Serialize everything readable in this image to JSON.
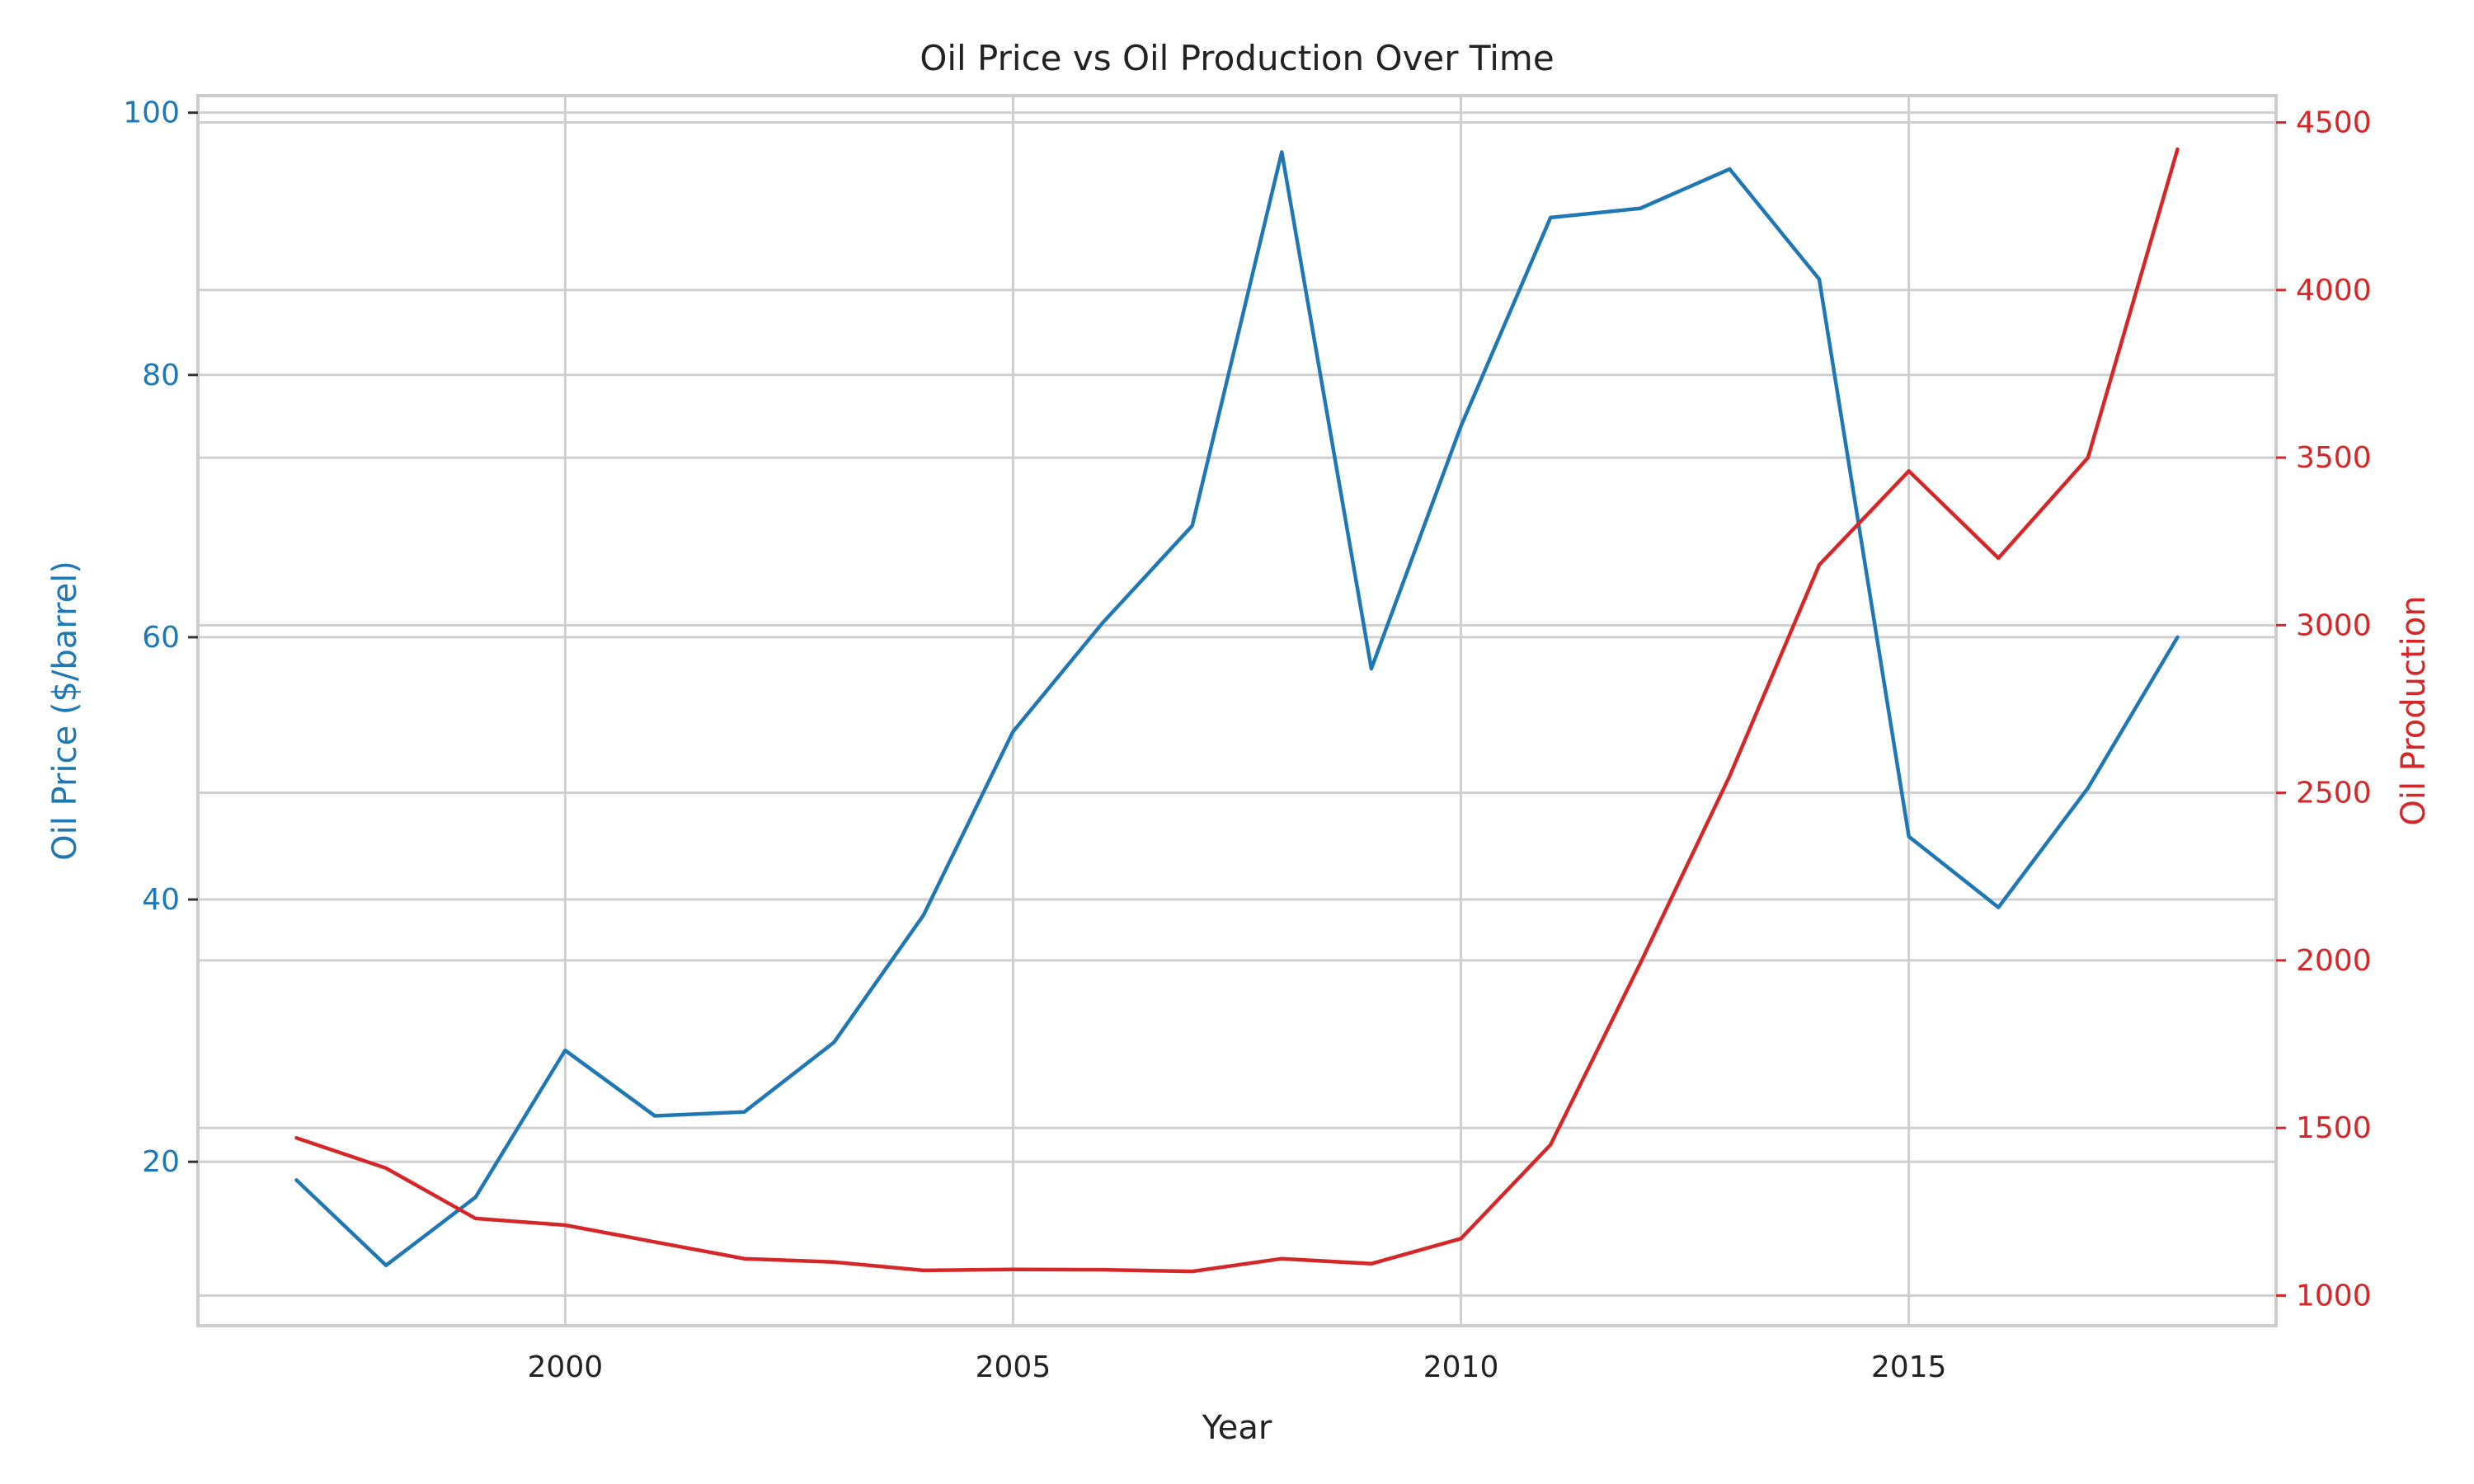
{
  "chart_data": {
    "type": "line",
    "title": "Oil Price vs Oil Production Over Time",
    "xlabel": "Year",
    "x": [
      1997,
      1998,
      1999,
      2000,
      2001,
      2002,
      2003,
      2004,
      2005,
      2006,
      2007,
      2008,
      2009,
      2010,
      2011,
      2012,
      2013,
      2014,
      2015,
      2016,
      2017,
      2018
    ],
    "xlim": [
      1995.9,
      2019.1
    ],
    "xticks": [
      2000,
      2005,
      2010,
      2015
    ],
    "y_left": {
      "label": "Oil Price ($/barrel)",
      "color": "#1f77b4",
      "lim": [
        7.5,
        101.3
      ],
      "ticks": [
        20,
        40,
        60,
        80,
        100
      ]
    },
    "y_right": {
      "label": "Oil Production",
      "color": "#d62728",
      "lim": [
        910,
        4580
      ],
      "ticks": [
        1000,
        1500,
        2000,
        2500,
        3000,
        3500,
        4000,
        4500
      ]
    },
    "series": [
      {
        "axis": "left",
        "color": "#1f77b4",
        "values": [
          18.6,
          12.1,
          17.3,
          28.5,
          23.5,
          23.8,
          29.1,
          38.8,
          52.8,
          61.1,
          68.5,
          97.0,
          57.6,
          76.1,
          92.0,
          92.7,
          95.7,
          87.3,
          44.8,
          39.4,
          48.5,
          60.0
        ]
      },
      {
        "axis": "right",
        "color": "#d62728",
        "values": [
          1470,
          1380,
          1230,
          1210,
          1160,
          1110,
          1100,
          1075,
          1078,
          1077,
          1072,
          1110,
          1095,
          1170,
          1450,
          1990,
          2550,
          3180,
          3460,
          3200,
          3500,
          4420
        ]
      }
    ],
    "grid": true,
    "legend": "none"
  }
}
